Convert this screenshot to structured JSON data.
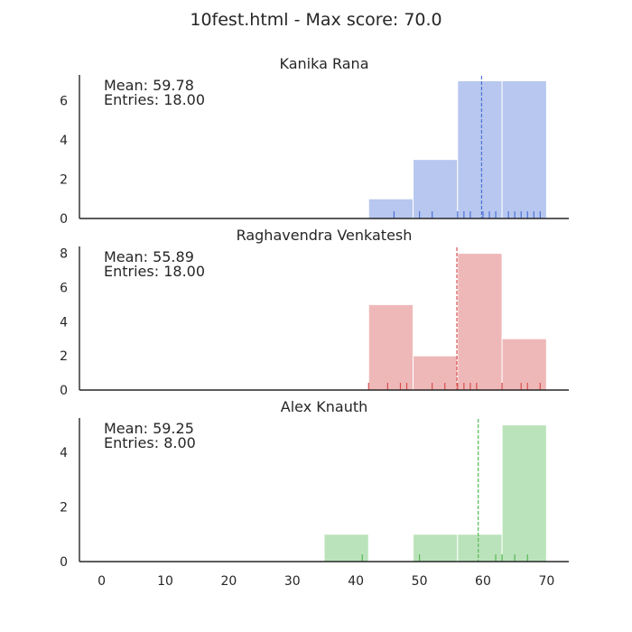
{
  "title": "10fest.html - Max score: 70.0",
  "chart_data": {
    "type": "histogram",
    "shared_x": true,
    "xlim": [
      -3.5,
      73.5
    ],
    "xticks": [
      0,
      10,
      20,
      30,
      40,
      50,
      60,
      70
    ],
    "grid": false,
    "panels": [
      {
        "name": "Kanika Rana",
        "color": "#4c72d6",
        "ylim": [
          0,
          7.3
        ],
        "yticks": [
          0,
          2,
          4,
          6
        ],
        "mean": 59.78,
        "mean_label": "Mean: 59.78",
        "entries_label": "Entries: 18.00",
        "bins": [
          {
            "x0": 42,
            "x1": 49,
            "count": 1
          },
          {
            "x0": 49,
            "x1": 56,
            "count": 3
          },
          {
            "x0": 56,
            "x1": 63,
            "count": 7
          },
          {
            "x0": 63,
            "x1": 70,
            "count": 7
          }
        ],
        "rug": [
          46,
          50,
          52,
          56,
          57,
          58,
          60,
          61,
          62,
          64,
          65,
          66,
          67,
          68,
          69
        ]
      },
      {
        "name": "Raghavendra Venkatesh",
        "color": "#d64e4e",
        "ylim": [
          0,
          8.4
        ],
        "yticks": [
          0,
          2,
          4,
          6,
          8
        ],
        "mean": 55.89,
        "mean_label": "Mean: 55.89",
        "entries_label": "Entries: 18.00",
        "bins": [
          {
            "x0": 42,
            "x1": 49,
            "count": 5
          },
          {
            "x0": 49,
            "x1": 56,
            "count": 2
          },
          {
            "x0": 56,
            "x1": 63,
            "count": 8
          },
          {
            "x0": 63,
            "x1": 70,
            "count": 3
          }
        ],
        "rug": [
          42,
          45,
          47,
          48,
          52,
          54,
          56,
          57,
          58,
          59,
          63,
          66,
          67,
          69
        ]
      },
      {
        "name": "Alex Knauth",
        "color": "#55b855",
        "ylim": [
          0,
          5.25
        ],
        "yticks": [
          0,
          2,
          4
        ],
        "mean": 59.25,
        "mean_label": "Mean: 59.25",
        "entries_label": "Entries: 8.00",
        "bins": [
          {
            "x0": 35,
            "x1": 42,
            "count": 1
          },
          {
            "x0": 42,
            "x1": 49,
            "count": 0
          },
          {
            "x0": 49,
            "x1": 56,
            "count": 1
          },
          {
            "x0": 56,
            "x1": 63,
            "count": 1
          },
          {
            "x0": 63,
            "x1": 70,
            "count": 5
          }
        ],
        "rug": [
          41,
          50,
          62,
          63,
          65,
          67
        ]
      }
    ]
  }
}
